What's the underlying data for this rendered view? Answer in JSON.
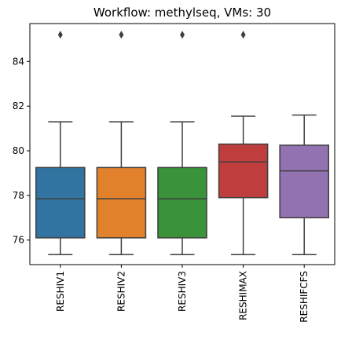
{
  "chart_data": {
    "type": "box",
    "title": "Workflow: methylseq, VMs: 30",
    "xlabel": "",
    "ylabel": "",
    "ylim": [
      74.9,
      85.7
    ],
    "yticks": [
      76,
      78,
      80,
      82,
      84
    ],
    "grid": false,
    "categories": [
      "RESHIV1",
      "RESHIV2",
      "RESHIV3",
      "RESHIMAX",
      "RESHIFCFS"
    ],
    "colors": [
      "#3274a1",
      "#e1812c",
      "#3a923a",
      "#c03d3e",
      "#9372b2"
    ],
    "boxes": [
      {
        "whisker_low": 75.35,
        "q1": 76.1,
        "median": 77.85,
        "q3": 79.25,
        "whisker_high": 81.3,
        "outliers": [
          85.2
        ]
      },
      {
        "whisker_low": 75.35,
        "q1": 76.1,
        "median": 77.85,
        "q3": 79.25,
        "whisker_high": 81.3,
        "outliers": [
          85.2
        ]
      },
      {
        "whisker_low": 75.35,
        "q1": 76.1,
        "median": 77.85,
        "q3": 79.25,
        "whisker_high": 81.3,
        "outliers": [
          85.2
        ]
      },
      {
        "whisker_low": 75.35,
        "q1": 77.9,
        "median": 79.5,
        "q3": 80.3,
        "whisker_high": 81.55,
        "outliers": [
          85.2
        ]
      },
      {
        "whisker_low": 75.35,
        "q1": 77.0,
        "median": 79.1,
        "q3": 80.25,
        "whisker_high": 81.6,
        "outliers": []
      }
    ]
  }
}
